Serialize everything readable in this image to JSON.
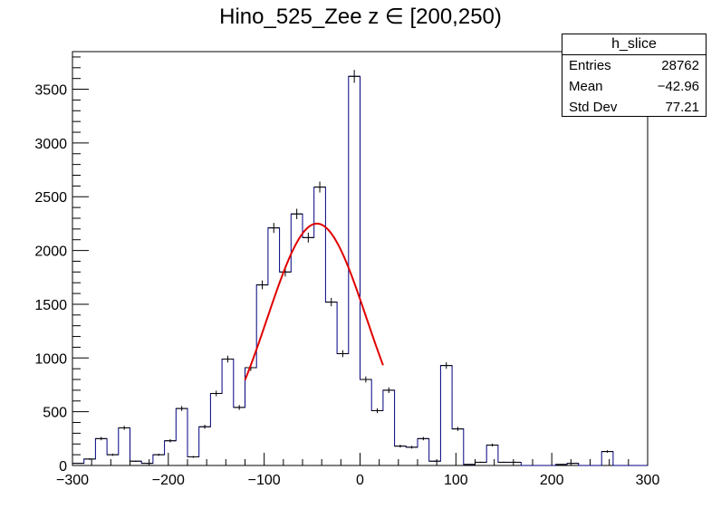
{
  "chart_data": {
    "type": "bar",
    "title": "Hino_525_Zee z  ∈ [200,250)",
    "xlim": [
      -300,
      300
    ],
    "ylim": [
      0,
      3850
    ],
    "bin_width": 12,
    "bin_edges_start": -300,
    "values": [
      20,
      60,
      250,
      100,
      350,
      40,
      20,
      100,
      230,
      530,
      80,
      360,
      670,
      990,
      540,
      910,
      1680,
      2210,
      1800,
      2340,
      2120,
      2590,
      1520,
      1040,
      3620,
      800,
      510,
      700,
      180,
      170,
      250,
      40,
      930,
      340,
      10,
      30,
      190,
      30,
      30,
      0,
      0,
      0,
      10,
      20,
      0,
      0,
      130,
      0,
      0,
      0
    ],
    "errors_shown": true,
    "fit": {
      "type": "gaussian",
      "amplitude": 2250,
      "mean": -45,
      "sigma": 52,
      "x_range": [
        -120,
        24
      ],
      "color": "#e00000"
    },
    "x_ticks": [
      -300,
      -200,
      -100,
      0,
      100,
      200,
      300
    ],
    "x_tick_labels": [
      "−300",
      "−200",
      "−100",
      "0",
      "100",
      "200",
      "300"
    ],
    "y_ticks": [
      0,
      500,
      1000,
      1500,
      2000,
      2500,
      3000,
      3500
    ],
    "y_tick_labels": [
      "0",
      "500",
      "1000",
      "1500",
      "2000",
      "2500",
      "3000",
      "3500"
    ],
    "line_color": "#000080",
    "grid": false,
    "legend": "none"
  },
  "stats_box": {
    "name": "h_slice",
    "entries_label": "Entries",
    "entries_value": "28762",
    "mean_label": "Mean",
    "mean_value": "−42.96",
    "stddev_label": "Std Dev",
    "stddev_value": "77.21"
  }
}
